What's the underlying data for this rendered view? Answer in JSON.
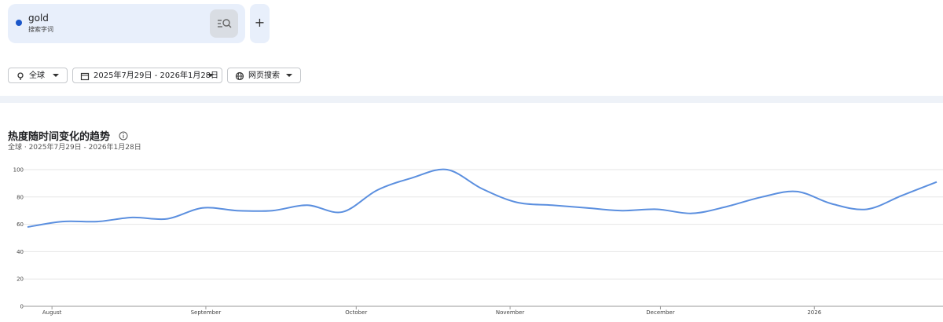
{
  "search": {
    "term": "gold",
    "term_type": "搜索字词"
  },
  "filters": {
    "region": "全球",
    "date_range": "2025年7月29日 - 2026年1月28日",
    "property": "网页搜索"
  },
  "chart_data": {
    "type": "line",
    "title": "热度随时间变化的趋势",
    "subtitle": "全球 · 2025年7月29日 - 2026年1月28日",
    "series": [
      {
        "name": "gold",
        "color": "#5b8fdf",
        "values": [
          58,
          62,
          62,
          65,
          64,
          72,
          70,
          70,
          74,
          69,
          85,
          94,
          100,
          86,
          76,
          74,
          72,
          70,
          71,
          68,
          73,
          80,
          84,
          75,
          71,
          81,
          91
        ]
      }
    ],
    "xlim": [
      0,
      26
    ],
    "xticks": [
      {
        "value": 0.7,
        "label": "August"
      },
      {
        "value": 5.1,
        "label": "September"
      },
      {
        "value": 9.4,
        "label": "October"
      },
      {
        "value": 13.8,
        "label": "November"
      },
      {
        "value": 18.1,
        "label": "December"
      },
      {
        "value": 22.5,
        "label": "2026"
      }
    ],
    "ylim": [
      0,
      100
    ],
    "yticks": [
      0,
      20,
      40,
      60,
      80,
      100
    ],
    "grid": true
  }
}
